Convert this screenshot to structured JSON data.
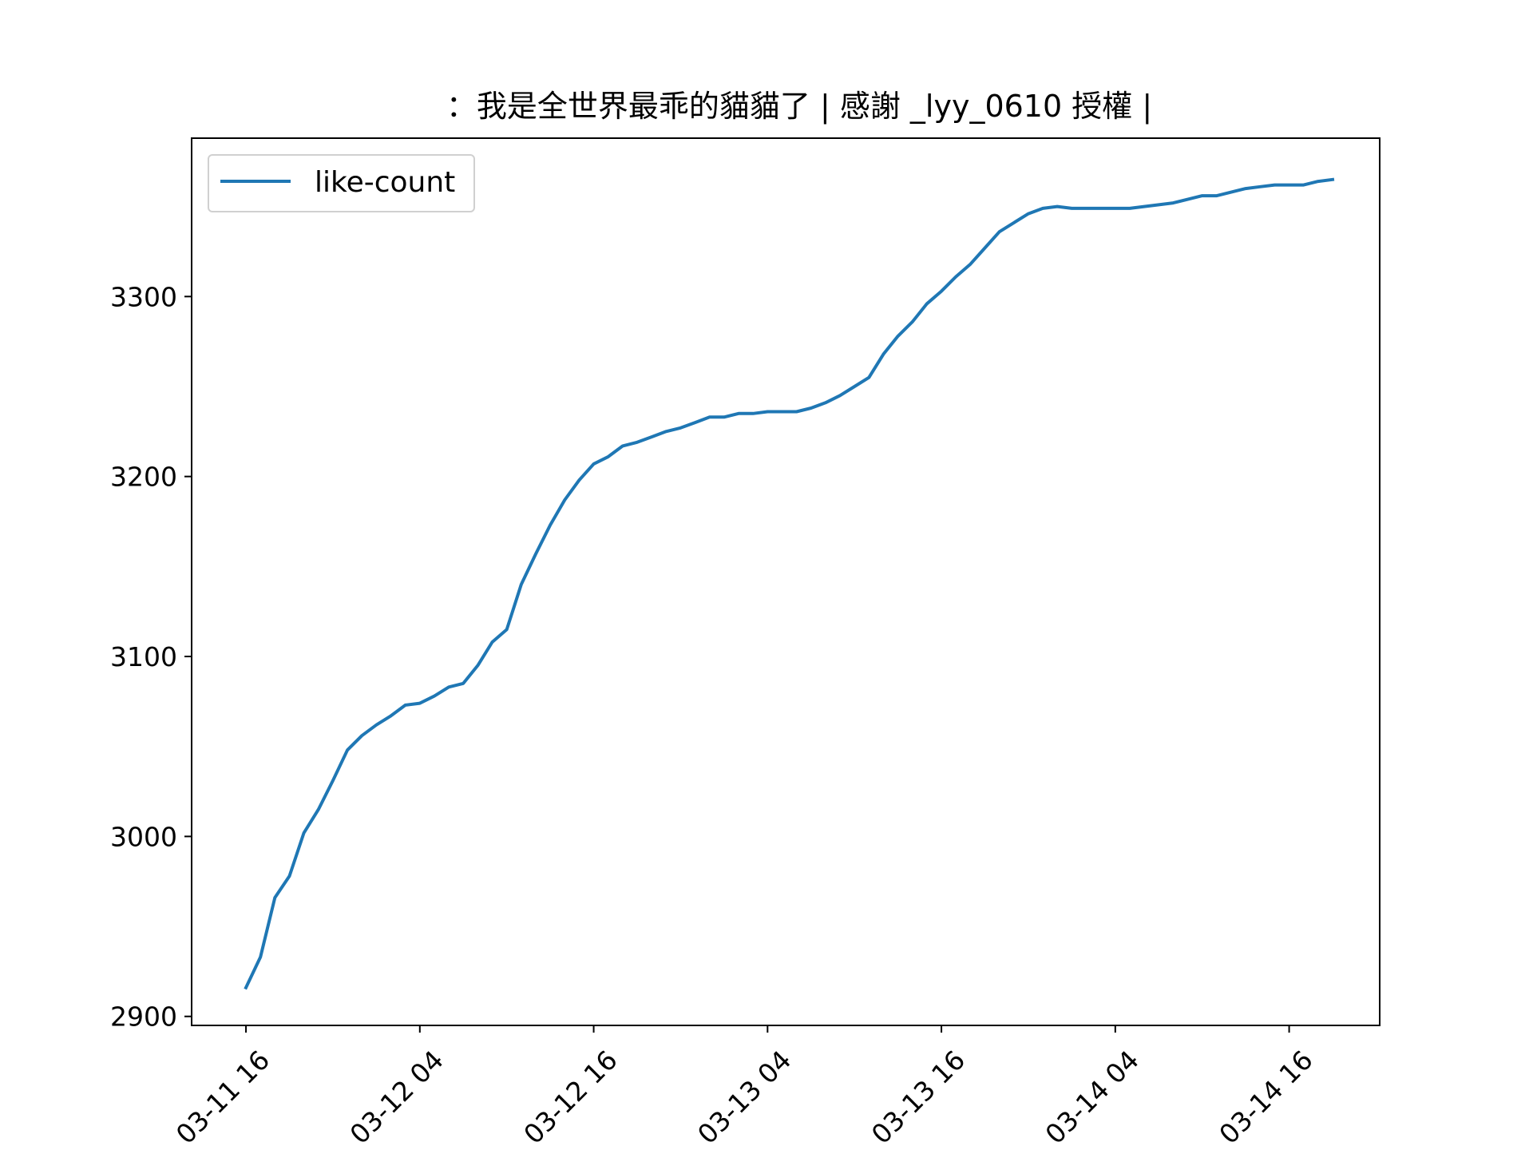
{
  "chart_data": {
    "type": "line",
    "title": "：我是全世界最乖的貓貓了 | 感謝 _lyy_0610 授權 |",
    "xlabel": "",
    "ylabel": "",
    "x_ticks": [
      "03-11 16",
      "03-12 04",
      "03-12 16",
      "03-13 04",
      "03-13 16",
      "03-14 04",
      "03-14 16"
    ],
    "y_ticks": [
      2900,
      3000,
      3100,
      3200,
      3300
    ],
    "xlim_hours": [
      -3.75,
      78.25
    ],
    "ylim": [
      2895,
      3388
    ],
    "legend": {
      "placement": "top-left"
    },
    "grid": false,
    "colors": {
      "series": "#1f77b4"
    },
    "x_unit": "hours from 03-11 16:00",
    "series": [
      {
        "name": "like-count",
        "x": [
          0,
          1,
          2,
          3,
          4,
          5,
          6,
          7,
          8,
          9,
          10,
          11,
          12,
          13,
          14,
          15,
          16,
          17,
          18,
          19,
          20,
          21,
          22,
          23,
          24,
          25,
          26,
          27,
          28,
          29,
          30,
          31,
          32,
          33,
          34,
          35,
          36,
          37,
          38,
          39,
          40,
          41,
          42,
          43,
          44,
          45,
          46,
          47,
          48,
          49,
          50,
          51,
          52,
          53,
          54,
          55,
          56,
          57,
          58,
          59,
          60,
          61,
          62,
          63,
          64,
          65,
          66,
          67,
          68,
          69,
          70,
          71,
          72,
          73,
          74,
          75
        ],
        "values": [
          2916,
          2933,
          2966,
          2978,
          3002,
          3015,
          3031,
          3048,
          3056,
          3062,
          3067,
          3073,
          3074,
          3078,
          3083,
          3085,
          3095,
          3108,
          3115,
          3140,
          3157,
          3173,
          3187,
          3198,
          3207,
          3211,
          3217,
          3219,
          3222,
          3225,
          3227,
          3230,
          3233,
          3233,
          3235,
          3235,
          3236,
          3236,
          3236,
          3238,
          3241,
          3245,
          3250,
          3255,
          3268,
          3278,
          3286,
          3296,
          3303,
          3311,
          3318,
          3327,
          3336,
          3341,
          3346,
          3349,
          3350,
          3349,
          3349,
          3349,
          3349,
          3349,
          3350,
          3351,
          3352,
          3354,
          3356,
          3356,
          3358,
          3360,
          3361,
          3362,
          3362,
          3362,
          3364,
          3365
        ]
      }
    ]
  }
}
